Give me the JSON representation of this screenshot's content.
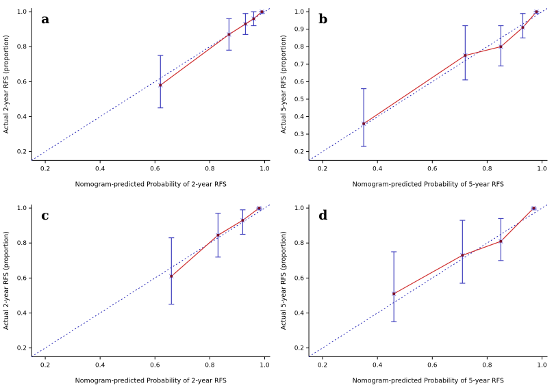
{
  "figure": {
    "background": "#ffffff",
    "colors": {
      "ideal_line": "#2525b5",
      "calibration_line": "#cf2f2f",
      "error_bar": "#4343bf",
      "marker_x": "#8a8aea",
      "point": "#7a0f2a",
      "axis": "#000000"
    }
  },
  "chart_data": [
    {
      "type": "line",
      "panel_label": "a",
      "xlabel": "Nomogram-predicted Probability of 2-year RFS",
      "ylabel": "Actual 2-year RFS (proportion)",
      "xlim": [
        0.15,
        1.02
      ],
      "ylim": [
        0.15,
        1.02
      ],
      "xticks": [
        0.2,
        0.4,
        0.6,
        0.8,
        1.0
      ],
      "yticks": [
        0.2,
        0.4,
        0.6,
        0.8,
        1.0
      ],
      "grid": false,
      "legend": "none",
      "ideal_line": {
        "x": [
          0.15,
          1.02
        ],
        "y": [
          0.15,
          1.02
        ]
      },
      "series": [
        {
          "name": "nomogram-calibration",
          "x": [
            0.62,
            0.87,
            0.93,
            0.96,
            0.99
          ],
          "y": [
            0.58,
            0.87,
            0.93,
            0.96,
            1.0
          ],
          "err_low": [
            0.45,
            0.78,
            0.87,
            0.92,
            0.99
          ],
          "err_high": [
            0.75,
            0.96,
            0.99,
            1.0,
            1.0
          ]
        }
      ]
    },
    {
      "type": "line",
      "panel_label": "b",
      "xlabel": "Nomogram-predicted Probability of 5-year RFS",
      "ylabel": "Actual 5-year RFS (proportion)",
      "xlim": [
        0.15,
        1.02
      ],
      "ylim": [
        0.15,
        1.02
      ],
      "xticks": [
        0.2,
        0.4,
        0.6,
        0.8,
        1.0
      ],
      "yticks": [
        0.2,
        0.3,
        0.4,
        0.5,
        0.6,
        0.7,
        0.8,
        0.9,
        1.0
      ],
      "grid": false,
      "legend": "none",
      "ideal_line": {
        "x": [
          0.15,
          1.02
        ],
        "y": [
          0.15,
          1.02
        ]
      },
      "series": [
        {
          "name": "nomogram-calibration",
          "x": [
            0.35,
            0.72,
            0.85,
            0.93,
            0.98
          ],
          "y": [
            0.36,
            0.75,
            0.8,
            0.91,
            1.0
          ],
          "err_low": [
            0.23,
            0.61,
            0.69,
            0.85,
            0.99
          ],
          "err_high": [
            0.56,
            0.92,
            0.92,
            0.99,
            1.0
          ]
        }
      ]
    },
    {
      "type": "line",
      "panel_label": "c",
      "xlabel": "Nomogram-predicted Probability of 2-year RFS",
      "ylabel": "Actual 2-year RFS (proportion)",
      "xlim": [
        0.15,
        1.02
      ],
      "ylim": [
        0.15,
        1.02
      ],
      "xticks": [
        0.2,
        0.4,
        0.6,
        0.8,
        1.0
      ],
      "yticks": [
        0.2,
        0.4,
        0.6,
        0.8,
        1.0
      ],
      "grid": false,
      "legend": "none",
      "ideal_line": {
        "x": [
          0.15,
          1.02
        ],
        "y": [
          0.15,
          1.02
        ]
      },
      "series": [
        {
          "name": "nomogram-calibration",
          "x": [
            0.66,
            0.83,
            0.92,
            0.98
          ],
          "y": [
            0.61,
            0.845,
            0.93,
            1.0
          ],
          "err_low": [
            0.45,
            0.72,
            0.85,
            0.99
          ],
          "err_high": [
            0.83,
            0.97,
            0.99,
            1.0
          ]
        }
      ]
    },
    {
      "type": "line",
      "panel_label": "d",
      "xlabel": "Nomogram-predicted Probability of 5-year RFS",
      "ylabel": "Actual 5-year RFS (proportion)",
      "xlim": [
        0.15,
        1.02
      ],
      "ylim": [
        0.15,
        1.02
      ],
      "xticks": [
        0.2,
        0.4,
        0.6,
        0.8,
        1.0
      ],
      "yticks": [
        0.2,
        0.4,
        0.6,
        0.8,
        1.0
      ],
      "grid": false,
      "legend": "none",
      "ideal_line": {
        "x": [
          0.15,
          1.02
        ],
        "y": [
          0.15,
          1.02
        ]
      },
      "series": [
        {
          "name": "nomogram-calibration",
          "x": [
            0.46,
            0.71,
            0.85,
            0.97
          ],
          "y": [
            0.51,
            0.73,
            0.81,
            1.0
          ],
          "err_low": [
            0.35,
            0.57,
            0.7,
            0.99
          ],
          "err_high": [
            0.75,
            0.93,
            0.94,
            1.0
          ]
        }
      ]
    }
  ]
}
